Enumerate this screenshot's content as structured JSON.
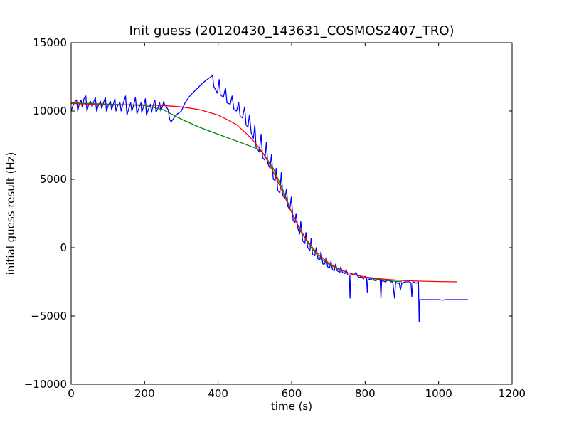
{
  "chart_data": {
    "type": "line",
    "title": "Init guess (20120430_143631_COSMOS2407_TRO)",
    "xlabel": "time (s)",
    "ylabel": "initial guess result (Hz)",
    "xlim": [
      0,
      1200
    ],
    "ylim": [
      -10000,
      15000
    ],
    "xticks": [
      0,
      200,
      400,
      600,
      800,
      1000,
      1200
    ],
    "yticks": [
      -10000,
      -5000,
      0,
      5000,
      10000,
      15000
    ],
    "grid": false,
    "series": [
      {
        "color": "#0000ff",
        "points": [
          [
            0,
            10000
          ],
          [
            5,
            10400
          ],
          [
            10,
            10700
          ],
          [
            15,
            10800
          ],
          [
            18,
            10000
          ],
          [
            22,
            10500
          ],
          [
            27,
            10800
          ],
          [
            30,
            10300
          ],
          [
            35,
            10900
          ],
          [
            40,
            11100
          ],
          [
            43,
            10000
          ],
          [
            48,
            10500
          ],
          [
            53,
            10700
          ],
          [
            57,
            10300
          ],
          [
            62,
            10700
          ],
          [
            66,
            11000
          ],
          [
            69,
            10000
          ],
          [
            74,
            10400
          ],
          [
            80,
            10700
          ],
          [
            83,
            10200
          ],
          [
            88,
            10600
          ],
          [
            93,
            11000
          ],
          [
            96,
            10000
          ],
          [
            101,
            10400
          ],
          [
            107,
            10700
          ],
          [
            110,
            10100
          ],
          [
            115,
            10500
          ],
          [
            119,
            10900
          ],
          [
            122,
            10000
          ],
          [
            127,
            10400
          ],
          [
            133,
            10600
          ],
          [
            136,
            10000
          ],
          [
            141,
            10500
          ],
          [
            146,
            10900
          ],
          [
            148,
            11100
          ],
          [
            152,
            9700
          ],
          [
            157,
            10200
          ],
          [
            162,
            10600
          ],
          [
            165,
            10000
          ],
          [
            170,
            10400
          ],
          [
            175,
            11000
          ],
          [
            179,
            9800
          ],
          [
            184,
            10200
          ],
          [
            190,
            10600
          ],
          [
            192,
            9900
          ],
          [
            197,
            10300
          ],
          [
            202,
            10900
          ],
          [
            205,
            9700
          ],
          [
            210,
            10100
          ],
          [
            216,
            10500
          ],
          [
            219,
            9900
          ],
          [
            223,
            10400
          ],
          [
            228,
            10800
          ],
          [
            231,
            9900
          ],
          [
            236,
            10200
          ],
          [
            241,
            10600
          ],
          [
            244,
            10000
          ],
          [
            248,
            10300
          ],
          [
            252,
            10700
          ],
          [
            254,
            10500
          ],
          [
            264,
            10100
          ],
          [
            268,
            9400
          ],
          [
            272,
            9200
          ],
          [
            280,
            9500
          ],
          [
            290,
            9800
          ],
          [
            300,
            10000
          ],
          [
            305,
            10300
          ],
          [
            310,
            10600
          ],
          [
            320,
            11000
          ],
          [
            330,
            11300
          ],
          [
            345,
            11700
          ],
          [
            360,
            12100
          ],
          [
            375,
            12400
          ],
          [
            385,
            12600
          ],
          [
            388,
            11800
          ],
          [
            398,
            11300
          ],
          [
            403,
            12300
          ],
          [
            406,
            11200
          ],
          [
            414,
            11000
          ],
          [
            420,
            11700
          ],
          [
            424,
            10600
          ],
          [
            433,
            10500
          ],
          [
            438,
            11100
          ],
          [
            443,
            10100
          ],
          [
            450,
            10000
          ],
          [
            456,
            10600
          ],
          [
            460,
            9600
          ],
          [
            466,
            9500
          ],
          [
            472,
            10300
          ],
          [
            476,
            9000
          ],
          [
            481,
            8800
          ],
          [
            485,
            9700
          ],
          [
            490,
            8400
          ],
          [
            496,
            8000
          ],
          [
            500,
            9000
          ],
          [
            503,
            7400
          ],
          [
            512,
            7000
          ],
          [
            517,
            8300
          ],
          [
            521,
            6600
          ],
          [
            527,
            6400
          ],
          [
            531,
            7700
          ],
          [
            535,
            6200
          ],
          [
            541,
            5800
          ],
          [
            545,
            6800
          ],
          [
            550,
            5000
          ],
          [
            555,
            4900
          ],
          [
            558,
            5800
          ],
          [
            562,
            4200
          ],
          [
            568,
            4000
          ],
          [
            572,
            5500
          ],
          [
            576,
            3800
          ],
          [
            582,
            3600
          ],
          [
            586,
            4300
          ],
          [
            590,
            3000
          ],
          [
            595,
            2800
          ],
          [
            599,
            3700
          ],
          [
            604,
            2000
          ],
          [
            609,
            1800
          ],
          [
            612,
            2500
          ],
          [
            617,
            1400
          ],
          [
            622,
            1000
          ],
          [
            625,
            1900
          ],
          [
            630,
            500
          ],
          [
            636,
            300
          ],
          [
            639,
            1100
          ],
          [
            644,
            0
          ],
          [
            650,
            -200
          ],
          [
            653,
            700
          ],
          [
            657,
            -500
          ],
          [
            663,
            -600
          ],
          [
            667,
            0
          ],
          [
            671,
            -800
          ],
          [
            677,
            -900
          ],
          [
            680,
            -300
          ],
          [
            685,
            -1200
          ],
          [
            690,
            -1200
          ],
          [
            694,
            -700
          ],
          [
            698,
            -1400
          ],
          [
            703,
            -1500
          ],
          [
            707,
            -1000
          ],
          [
            711,
            -1600
          ],
          [
            716,
            -1700
          ],
          [
            720,
            -1200
          ],
          [
            724,
            -1700
          ],
          [
            731,
            -1800
          ],
          [
            734,
            -1400
          ],
          [
            738,
            -1800
          ],
          [
            745,
            -1900
          ],
          [
            748,
            -1600
          ],
          [
            753,
            -2000
          ],
          [
            757,
            -2000
          ],
          [
            759,
            -3700
          ],
          [
            761,
            -1900
          ],
          [
            770,
            -2000
          ],
          [
            775,
            -1800
          ],
          [
            780,
            -2100
          ],
          [
            785,
            -2200
          ],
          [
            790,
            -2100
          ],
          [
            795,
            -2300
          ],
          [
            800,
            -2100
          ],
          [
            804,
            -2200
          ],
          [
            806,
            -3300
          ],
          [
            808,
            -2300
          ],
          [
            818,
            -2300
          ],
          [
            822,
            -2200
          ],
          [
            825,
            -2400
          ],
          [
            830,
            -2400
          ],
          [
            837,
            -2300
          ],
          [
            841,
            -2400
          ],
          [
            843,
            -3700
          ],
          [
            845,
            -2400
          ],
          [
            856,
            -2500
          ],
          [
            860,
            -2400
          ],
          [
            866,
            -2400
          ],
          [
            870,
            -2500
          ],
          [
            875,
            -2500
          ],
          [
            880,
            -3700
          ],
          [
            883,
            -2500
          ],
          [
            887,
            -2600
          ],
          [
            893,
            -2600
          ],
          [
            896,
            -3100
          ],
          [
            900,
            -2600
          ],
          [
            908,
            -2500
          ],
          [
            915,
            -2500
          ],
          [
            922,
            -2500
          ],
          [
            925,
            -2600
          ],
          [
            927,
            -3600
          ],
          [
            930,
            -2500
          ],
          [
            940,
            -2600
          ],
          [
            945,
            -2500
          ],
          [
            947,
            -5400
          ],
          [
            949,
            -3800
          ],
          [
            960,
            -3800
          ],
          [
            975,
            -3800
          ],
          [
            990,
            -3800
          ],
          [
            1000,
            -3800
          ],
          [
            1010,
            -3850
          ],
          [
            1020,
            -3800
          ],
          [
            1040,
            -3800
          ],
          [
            1060,
            -3800
          ],
          [
            1080,
            -3800
          ]
        ]
      },
      {
        "color": "#008000",
        "points": [
          [
            0,
            10600
          ],
          [
            100,
            10500
          ],
          [
            200,
            10400
          ],
          [
            250,
            10100
          ],
          [
            300,
            9400
          ],
          [
            350,
            8800
          ],
          [
            400,
            8300
          ],
          [
            450,
            7800
          ],
          [
            500,
            7300
          ],
          [
            520,
            7000
          ],
          [
            550,
            5800
          ],
          [
            580,
            4000
          ],
          [
            600,
            2600
          ],
          [
            625,
            1200
          ],
          [
            650,
            100
          ],
          [
            675,
            -700
          ],
          [
            700,
            -1200
          ],
          [
            725,
            -1550
          ],
          [
            750,
            -1800
          ],
          [
            775,
            -2000
          ],
          [
            800,
            -2150
          ],
          [
            830,
            -2300
          ],
          [
            860,
            -2400
          ],
          [
            900,
            -2500
          ]
        ]
      },
      {
        "color": "#ff0000",
        "points": [
          [
            0,
            10550
          ],
          [
            50,
            10500
          ],
          [
            100,
            10450
          ],
          [
            150,
            10450
          ],
          [
            200,
            10450
          ],
          [
            250,
            10400
          ],
          [
            300,
            10300
          ],
          [
            350,
            10100
          ],
          [
            400,
            9700
          ],
          [
            430,
            9300
          ],
          [
            450,
            9000
          ],
          [
            475,
            8400
          ],
          [
            500,
            7700
          ],
          [
            520,
            7000
          ],
          [
            540,
            6100
          ],
          [
            560,
            5000
          ],
          [
            580,
            3800
          ],
          [
            600,
            2600
          ],
          [
            620,
            1500
          ],
          [
            640,
            600
          ],
          [
            660,
            -100
          ],
          [
            680,
            -650
          ],
          [
            700,
            -1100
          ],
          [
            725,
            -1500
          ],
          [
            750,
            -1800
          ],
          [
            775,
            -2000
          ],
          [
            800,
            -2150
          ],
          [
            850,
            -2300
          ],
          [
            900,
            -2400
          ],
          [
            950,
            -2450
          ],
          [
            1000,
            -2480
          ],
          [
            1050,
            -2500
          ]
        ]
      }
    ]
  }
}
